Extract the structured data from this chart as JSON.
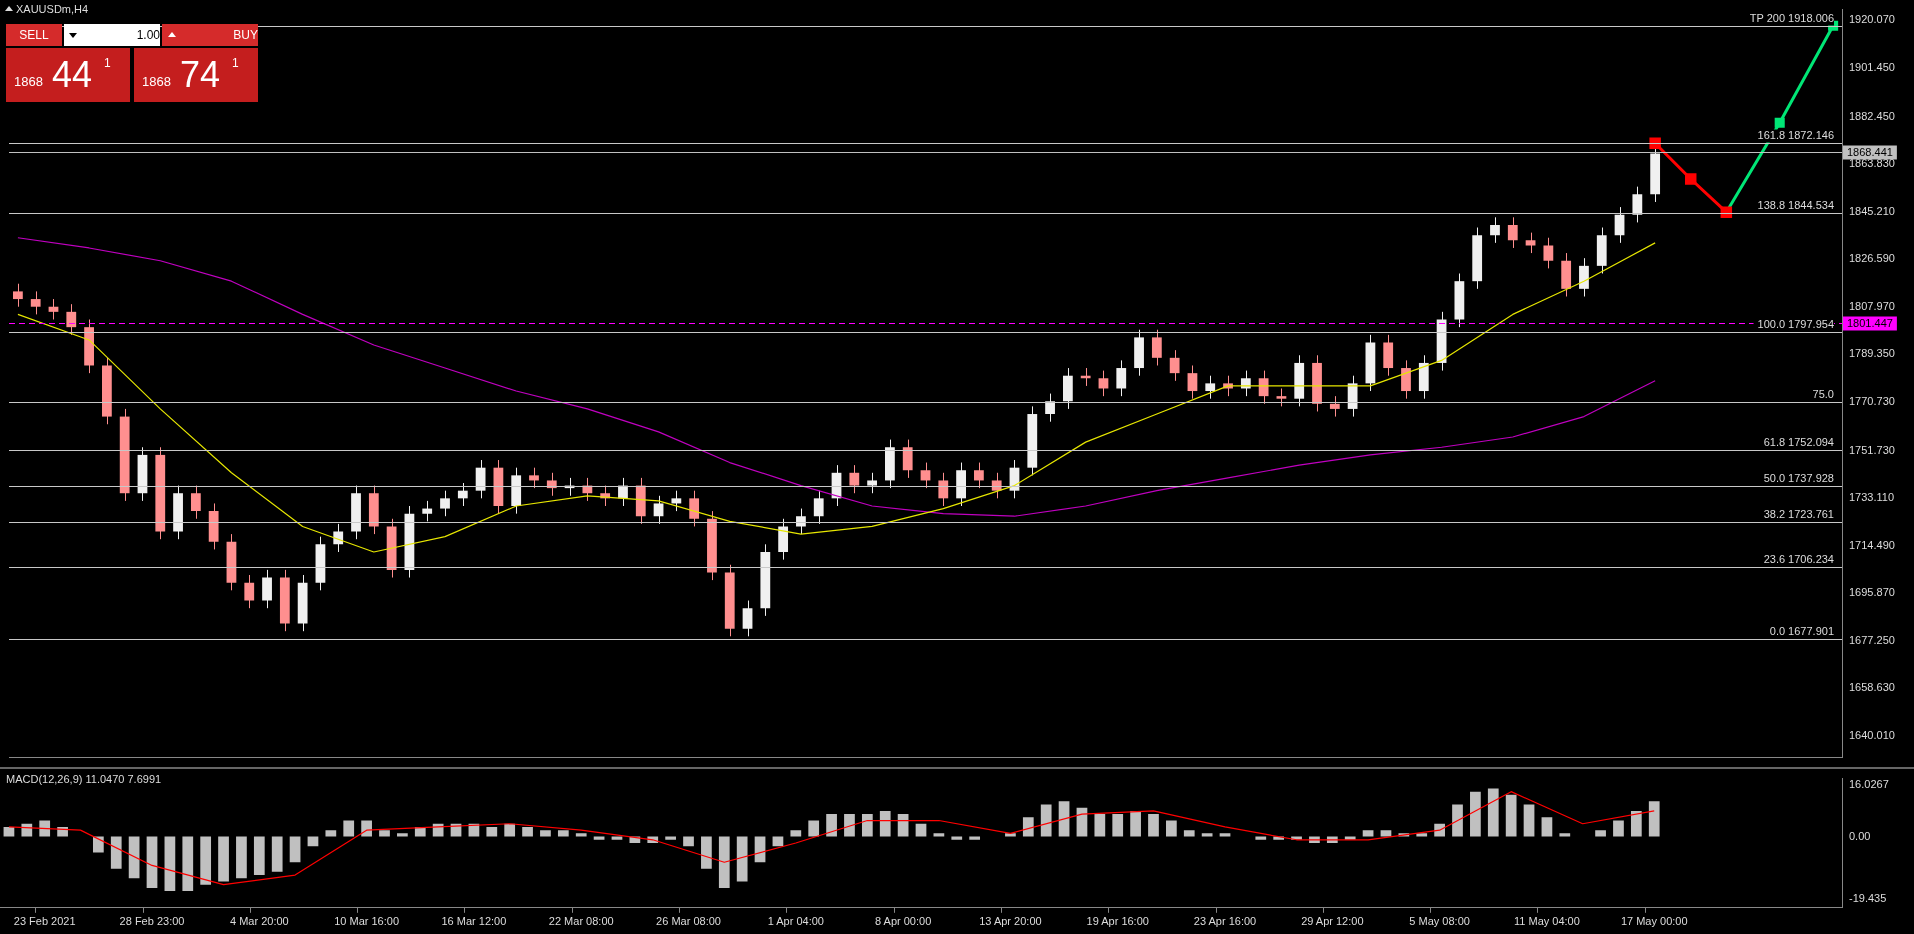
{
  "chart_data": [
    {
      "type": "candlestick",
      "title": "XAUUSDm,H4",
      "tick_labels": "y",
      "grid": false,
      "legend": false,
      "colors": [
        "#ff8f8f",
        "#ff8f8f",
        "#ff8f8f",
        "#ff8f8f",
        "#ff8f8f",
        "#ff8f8f",
        "#ff8f8f",
        "#f0f0f0",
        "#ff8f8f",
        "#f0f0f0",
        "#ff8f8f",
        "#ff8f8f",
        "#ff8f8f",
        "#ff8f8f",
        "#f0f0f0",
        "#ff8f8f",
        "#f0f0f0",
        "#f0f0f0",
        "#f0f0f0",
        "#f0f0f0",
        "#ff8f8f",
        "#ff8f8f",
        "#f0f0f0",
        "#f0f0f0",
        "#f0f0f0",
        "#f0f0f0",
        "#f0f0f0",
        "#ff8f8f",
        "#f0f0f0",
        "#ff8f8f",
        "#ff8f8f",
        "#f0f0f0",
        "#ff8f8f",
        "#ff8f8f",
        "#f0f0f0",
        "#ff8f8f",
        "#f0f0f0",
        "#f0f0f0",
        "#ff8f8f",
        "#ff8f8f",
        "#ff8f8f",
        "#f0f0f0",
        "#f0f0f0",
        "#f0f0f0",
        "#f0f0f0",
        "#f0f0f0",
        "#f0f0f0",
        "#ff8f8f",
        "#f0f0f0",
        "#f0f0f0",
        "#ff8f8f",
        "#ff8f8f",
        "#ff8f8f",
        "#f0f0f0",
        "#ff8f8f",
        "#ff8f8f",
        "#f0f0f0",
        "#f0f0f0",
        "#f0f0f0",
        "#f0f0f0",
        "#ff8f8f",
        "#ff8f8f",
        "#f0f0f0",
        "#f0f0f0",
        "#ff8f8f",
        "#ff8f8f",
        "#ff8f8f",
        "#f0f0f0",
        "#ff8f8f",
        "#f0f0f0",
        "#ff8f8f",
        "#ff8f8f",
        "#f0f0f0",
        "#ff8f8f",
        "#ff8f8f",
        "#f0f0f0",
        "#f0f0f0",
        "#ff8f8f",
        "#ff8f8f",
        "#f0f0f0",
        "#f0f0f0",
        "#f0f0f0",
        "#f0f0f0",
        "#f0f0f0",
        "#ff8f8f",
        "#ff8f8f",
        "#ff8f8f",
        "#ff8f8f",
        "#f0f0f0",
        "#f0f0f0",
        "#f0f0f0",
        "#f0f0f0",
        "#f0f0f0",
        null,
        null,
        null,
        null,
        null,
        null,
        null,
        null,
        null,
        null
      ],
      "categories": [
        null,
        null,
        null,
        null,
        null,
        null,
        null,
        null,
        null,
        null,
        null,
        null,
        null,
        null,
        null,
        null,
        null,
        null,
        null,
        null,
        null,
        null,
        null,
        null,
        null,
        null,
        null,
        null,
        null,
        null,
        null,
        null,
        null,
        null,
        null,
        null,
        null,
        null,
        null,
        null,
        null,
        null,
        null,
        null,
        null,
        null,
        null,
        null,
        null,
        null,
        null,
        null,
        null,
        null,
        null,
        null,
        null,
        null,
        null,
        null,
        null,
        null,
        null,
        null,
        null,
        null,
        null,
        null,
        null,
        null,
        null,
        null,
        null,
        null,
        null,
        null,
        null,
        null,
        null,
        null,
        null,
        null,
        null,
        null,
        null,
        null,
        null,
        null,
        null,
        null,
        null,
        null,
        null,
        null,
        null,
        null,
        null,
        null,
        null,
        null,
        null,
        null,
        null
      ],
      "ohlc": [
        [
          1814,
          1817,
          1808,
          1811
        ],
        [
          1811,
          1814,
          1805,
          1808
        ],
        [
          1808,
          1811,
          1803,
          1806
        ],
        [
          1806,
          1809,
          1797,
          1800
        ],
        [
          1800,
          1803,
          1782,
          1785
        ],
        [
          1785,
          1788,
          1762,
          1765
        ],
        [
          1765,
          1768,
          1732,
          1735
        ],
        [
          1735,
          1753,
          1732,
          1750
        ],
        [
          1750,
          1753,
          1717,
          1720
        ],
        [
          1720,
          1738,
          1717,
          1735
        ],
        [
          1735,
          1738,
          1725,
          1728
        ],
        [
          1728,
          1731,
          1713,
          1716
        ],
        [
          1716,
          1719,
          1697,
          1700
        ],
        [
          1700,
          1703,
          1690,
          1693
        ],
        [
          1693,
          1705,
          1690,
          1702
        ],
        [
          1702,
          1705,
          1681,
          1684
        ],
        [
          1684,
          1703,
          1681,
          1700
        ],
        [
          1700,
          1718,
          1697,
          1715
        ],
        [
          1715,
          1723,
          1712,
          1720
        ],
        [
          1720,
          1738,
          1717,
          1735
        ],
        [
          1735,
          1738,
          1719,
          1722
        ],
        [
          1722,
          1725,
          1702,
          1705
        ],
        [
          1705,
          1730,
          1702,
          1727
        ],
        [
          1727,
          1732,
          1724,
          1729
        ],
        [
          1729,
          1736,
          1726,
          1733
        ],
        [
          1733,
          1739,
          1730,
          1736
        ],
        [
          1736,
          1748,
          1733,
          1745
        ],
        [
          1745,
          1748,
          1727,
          1730
        ],
        [
          1730,
          1745,
          1727,
          1742
        ],
        [
          1742,
          1745,
          1737,
          1740
        ],
        [
          1740,
          1743,
          1734,
          1737
        ],
        [
          1737,
          1741,
          1734,
          1738
        ],
        [
          1738,
          1741,
          1732,
          1735
        ],
        [
          1735,
          1738,
          1730,
          1733
        ],
        [
          1733,
          1741,
          1730,
          1738
        ],
        [
          1738,
          1741,
          1723,
          1726
        ],
        [
          1726,
          1734,
          1723,
          1731
        ],
        [
          1731,
          1736,
          1728,
          1733
        ],
        [
          1733,
          1736,
          1722,
          1725
        ],
        [
          1725,
          1728,
          1701,
          1704
        ],
        [
          1704,
          1707,
          1679,
          1682
        ],
        [
          1682,
          1693,
          1679,
          1690
        ],
        [
          1690,
          1715,
          1687,
          1712
        ],
        [
          1712,
          1725,
          1709,
          1722
        ],
        [
          1722,
          1729,
          1719,
          1726
        ],
        [
          1726,
          1736,
          1723,
          1733
        ],
        [
          1733,
          1746,
          1730,
          1743
        ],
        [
          1743,
          1746,
          1735,
          1738
        ],
        [
          1738,
          1743,
          1735,
          1740
        ],
        [
          1740,
          1756,
          1737,
          1753
        ],
        [
          1753,
          1756,
          1741,
          1744
        ],
        [
          1744,
          1747,
          1737,
          1740
        ],
        [
          1740,
          1743,
          1730,
          1733
        ],
        [
          1733,
          1747,
          1730,
          1744
        ],
        [
          1744,
          1747,
          1737,
          1740
        ],
        [
          1740,
          1743,
          1733,
          1736
        ],
        [
          1736,
          1748,
          1733,
          1745
        ],
        [
          1745,
          1769,
          1742,
          1766
        ],
        [
          1766,
          1774,
          1763,
          1771
        ],
        [
          1771,
          1784,
          1768,
          1781
        ],
        [
          1781,
          1784,
          1777,
          1780
        ],
        [
          1780,
          1783,
          1773,
          1776
        ],
        [
          1776,
          1787,
          1773,
          1784
        ],
        [
          1784,
          1799,
          1781,
          1796
        ],
        [
          1796,
          1799,
          1785,
          1788
        ],
        [
          1788,
          1791,
          1779,
          1782
        ],
        [
          1782,
          1785,
          1772,
          1775
        ],
        [
          1775,
          1781,
          1772,
          1778
        ],
        [
          1778,
          1781,
          1773,
          1776
        ],
        [
          1776,
          1783,
          1773,
          1780
        ],
        [
          1780,
          1783,
          1770,
          1773
        ],
        [
          1773,
          1776,
          1769,
          1772
        ],
        [
          1772,
          1789,
          1769,
          1786
        ],
        [
          1786,
          1789,
          1767,
          1770
        ],
        [
          1770,
          1773,
          1765,
          1768
        ],
        [
          1768,
          1781,
          1765,
          1778
        ],
        [
          1778,
          1797,
          1775,
          1794
        ],
        [
          1794,
          1797,
          1781,
          1784
        ],
        [
          1784,
          1787,
          1772,
          1775
        ],
        [
          1775,
          1789,
          1772,
          1786
        ],
        [
          1786,
          1806,
          1783,
          1803
        ],
        [
          1803,
          1821,
          1800,
          1818
        ],
        [
          1818,
          1839,
          1815,
          1836
        ],
        [
          1836,
          1843,
          1833,
          1840
        ],
        [
          1840,
          1843,
          1831,
          1834
        ],
        [
          1834,
          1837,
          1829,
          1832
        ],
        [
          1832,
          1835,
          1823,
          1826
        ],
        [
          1826,
          1829,
          1812,
          1815
        ],
        [
          1815,
          1827,
          1812,
          1824
        ],
        [
          1824,
          1839,
          1821,
          1836
        ],
        [
          1836,
          1847,
          1833,
          1844
        ],
        [
          1844,
          1855,
          1841,
          1852
        ],
        [
          1852,
          1873,
          1849,
          1868
        ],
        null,
        null,
        null,
        null,
        null,
        null,
        null,
        null,
        null,
        null
      ],
      "series": [
        {
          "type": "line",
          "color": "#e6e600",
          "values": [
            1805,
            null,
            null,
            null,
            1795,
            null,
            null,
            null,
            1768,
            null,
            null,
            null,
            1743,
            null,
            null,
            null,
            1722,
            null,
            null,
            null,
            1712,
            null,
            null,
            null,
            1718,
            null,
            null,
            null,
            1730,
            null,
            null,
            null,
            1734,
            null,
            null,
            null,
            1732,
            null,
            null,
            null,
            1724,
            null,
            null,
            null,
            1719,
            null,
            null,
            null,
            1722,
            null,
            null,
            null,
            1729,
            null,
            null,
            null,
            1738,
            null,
            null,
            null,
            1755,
            null,
            null,
            null,
            1766,
            null,
            null,
            null,
            1777,
            null,
            null,
            null,
            1777,
            null,
            null,
            null,
            1777,
            null,
            null,
            null,
            1787,
            null,
            null,
            null,
            1805,
            null,
            null,
            null,
            1818,
            null,
            null,
            null,
            1833,
            null,
            null,
            null,
            null,
            null,
            null,
            null,
            null,
            null,
            null
          ]
        },
        {
          "type": "line",
          "color": "#c000c0",
          "values": [
            1835,
            null,
            null,
            null,
            1831,
            null,
            null,
            null,
            1826,
            null,
            null,
            null,
            1818,
            null,
            null,
            null,
            1805,
            null,
            null,
            null,
            1793,
            null,
            null,
            null,
            1784,
            null,
            null,
            null,
            1775,
            null,
            null,
            null,
            1768,
            null,
            null,
            null,
            1759,
            null,
            null,
            null,
            1747,
            null,
            null,
            null,
            1738,
            null,
            null,
            null,
            1730,
            null,
            null,
            null,
            1727,
            null,
            null,
            null,
            1726,
            null,
            null,
            null,
            1730,
            null,
            null,
            null,
            1736,
            null,
            null,
            null,
            1741,
            null,
            null,
            null,
            1746,
            null,
            null,
            null,
            1750,
            null,
            null,
            null,
            1753,
            null,
            null,
            null,
            1757,
            null,
            null,
            null,
            1765,
            null,
            null,
            null,
            1779,
            null,
            null,
            null,
            null,
            null,
            null,
            null,
            null,
            null,
            null
          ]
        },
        {
          "type": "line",
          "color": "#ff0000",
          "marker": "square",
          "values": [
            null,
            null,
            null,
            null,
            null,
            null,
            null,
            null,
            null,
            null,
            null,
            null,
            null,
            null,
            null,
            null,
            null,
            null,
            null,
            null,
            null,
            null,
            null,
            null,
            null,
            null,
            null,
            null,
            null,
            null,
            null,
            null,
            null,
            null,
            null,
            null,
            null,
            null,
            null,
            null,
            null,
            null,
            null,
            null,
            null,
            null,
            null,
            null,
            null,
            null,
            null,
            null,
            null,
            null,
            null,
            null,
            null,
            null,
            null,
            null,
            null,
            null,
            null,
            null,
            null,
            null,
            null,
            null,
            null,
            null,
            null,
            null,
            null,
            null,
            null,
            null,
            null,
            null,
            null,
            null,
            null,
            null,
            null,
            null,
            null,
            null,
            null,
            null,
            null,
            null,
            null,
            null,
            1872,
            null,
            1858,
            null,
            1845,
            null,
            null,
            null,
            null,
            null,
            null
          ]
        },
        {
          "type": "line",
          "color": "#00e676",
          "marker": "square",
          "values": [
            null,
            null,
            null,
            null,
            null,
            null,
            null,
            null,
            null,
            null,
            null,
            null,
            null,
            null,
            null,
            null,
            null,
            null,
            null,
            null,
            null,
            null,
            null,
            null,
            null,
            null,
            null,
            null,
            null,
            null,
            null,
            null,
            null,
            null,
            null,
            null,
            null,
            null,
            null,
            null,
            null,
            null,
            null,
            null,
            null,
            null,
            null,
            null,
            null,
            null,
            null,
            null,
            null,
            null,
            null,
            null,
            null,
            null,
            null,
            null,
            null,
            null,
            null,
            null,
            null,
            null,
            null,
            null,
            null,
            null,
            null,
            null,
            null,
            null,
            null,
            null,
            null,
            null,
            null,
            null,
            null,
            null,
            null,
            null,
            null,
            null,
            null,
            null,
            null,
            null,
            null,
            null,
            null,
            null,
            null,
            null,
            1845,
            null,
            null,
            1880,
            null,
            null,
            1918
          ]
        }
      ],
      "ylim": [
        1631.6,
        1924.3
      ],
      "yticks": [
        {
          "value": 1920.07,
          "label": "1920.070"
        },
        {
          "value": 1901.45,
          "label": "1901.450"
        },
        {
          "value": 1882.45,
          "label": "1882.450"
        },
        {
          "value": 1863.83,
          "label": "1863.830"
        },
        {
          "value": 1845.21,
          "label": "1845.210"
        },
        {
          "value": 1826.59,
          "label": "1826.590"
        },
        {
          "value": 1807.97,
          "label": "1807.970"
        },
        {
          "value": 1789.35,
          "label": "1789.350"
        },
        {
          "value": 1770.73,
          "label": "1770.730"
        },
        {
          "value": 1751.73,
          "label": "1751.730"
        },
        {
          "value": 1733.11,
          "label": "1733.110"
        },
        {
          "value": 1714.49,
          "label": "1714.490"
        },
        {
          "value": 1695.87,
          "label": "1695.870"
        },
        {
          "value": 1677.25,
          "label": "1677.250"
        },
        {
          "value": 1658.63,
          "label": "1658.630"
        },
        {
          "value": 1640.01,
          "label": "1640.010"
        }
      ],
      "ref_lines": [
        {
          "axis": "y",
          "value": 1918.006,
          "label": "TP 200 1918.006"
        },
        {
          "axis": "y",
          "value": 1872.146,
          "label": "161.8 1872.146"
        },
        {
          "axis": "y",
          "value": 1844.534,
          "label": "138.8 1844.534"
        },
        {
          "axis": "y",
          "value": 1797.954,
          "label": "100.0 1797.954"
        },
        {
          "axis": "y",
          "value": 1770.73
        },
        {
          "axis": "y",
          "value": 1752.094,
          "label": "61.8 1752.094"
        },
        {
          "axis": "y",
          "value": 1737.928,
          "label": "50.0 1737.928"
        },
        {
          "axis": "y",
          "value": 1723.761,
          "label": "38.2 1723.761"
        },
        {
          "axis": "y",
          "value": 1706.234,
          "label": "23.6 1706.234"
        },
        {
          "axis": "y",
          "value": 1677.901,
          "label": "0.0 1677.901"
        },
        {
          "axis": "y",
          "value": 1868.441,
          "label": "1868.441",
          "color": "#c0c0c0"
        },
        {
          "axis": "y",
          "value": 1801.447,
          "label": "1801.447",
          "color": "#ff00ff",
          "line_style": "dashed"
        }
      ],
      "annotations": [
        "SELL",
        "1.00",
        "BUY",
        "1868",
        "44",
        "1",
        "1868",
        "74",
        "1",
        {
          "text": "75.0",
          "y": 1770.73
        }
      ]
    },
    {
      "type": "bar",
      "title": "MACD(12,26,9) 11.0470 7.6991",
      "grid": false,
      "legend": false,
      "categories": [
        null,
        null,
        "23 Feb 2021",
        null,
        null,
        null,
        null,
        null,
        "28 Feb 23:00",
        null,
        null,
        null,
        null,
        null,
        "4 Mar 20:00",
        null,
        null,
        null,
        null,
        null,
        "10 Mar 16:00",
        null,
        null,
        null,
        null,
        null,
        "16 Mar 12:00",
        null,
        null,
        null,
        null,
        null,
        "22 Mar 08:00",
        null,
        null,
        null,
        null,
        null,
        "26 Mar 08:00",
        null,
        null,
        null,
        null,
        null,
        "1 Apr 04:00",
        null,
        null,
        null,
        null,
        null,
        "8 Apr 00:00",
        null,
        null,
        null,
        null,
        null,
        "13 Apr 20:00",
        null,
        null,
        null,
        null,
        null,
        "19 Apr 16:00",
        null,
        null,
        null,
        null,
        null,
        "23 Apr 16:00",
        null,
        null,
        null,
        null,
        null,
        "29 Apr 12:00",
        null,
        null,
        null,
        null,
        null,
        "5 May 08:00",
        null,
        null,
        null,
        null,
        null,
        "11 May 04:00",
        null,
        null,
        null,
        null,
        null,
        "17 May 00:00",
        null,
        null,
        null,
        null,
        null,
        null,
        null,
        null,
        null,
        null
      ],
      "series": [
        {
          "type": "bar",
          "color": "#c0c0c0",
          "values": [
            3,
            4,
            5,
            3,
            0,
            -5,
            -10,
            -13,
            -16,
            -17,
            -17,
            -15,
            -14,
            -13,
            -12,
            -11,
            -8,
            -3,
            2,
            5,
            5,
            2,
            1,
            3,
            4,
            4,
            4,
            3,
            4,
            3,
            2,
            2,
            1,
            -1,
            -1,
            -2,
            -2,
            -1,
            -3,
            -10,
            -16,
            -14,
            -8,
            -3,
            2,
            5,
            7,
            7,
            7,
            8,
            7,
            4,
            1,
            -1,
            -1,
            0,
            1,
            6,
            10,
            11,
            9,
            7,
            7,
            8,
            7,
            5,
            2,
            1,
            1,
            0,
            -1,
            -1,
            -1,
            -2,
            -2,
            -1,
            2,
            2,
            1,
            1,
            4,
            10,
            14,
            15,
            13,
            10,
            6,
            1,
            0,
            2,
            5,
            8,
            11,
            null,
            null,
            null,
            null,
            null,
            null,
            null,
            null,
            null,
            null
          ]
        },
        {
          "type": "line",
          "color": "#ff0000",
          "values": [
            3,
            null,
            null,
            null,
            2,
            null,
            null,
            null,
            -9,
            null,
            null,
            null,
            -15,
            null,
            null,
            null,
            -12,
            null,
            null,
            null,
            2,
            null,
            null,
            null,
            3,
            null,
            null,
            null,
            4,
            null,
            null,
            null,
            2,
            null,
            null,
            null,
            -1,
            null,
            null,
            null,
            -8,
            null,
            null,
            null,
            -2,
            null,
            null,
            null,
            5,
            null,
            null,
            null,
            5,
            null,
            null,
            null,
            1,
            null,
            null,
            null,
            7,
            null,
            null,
            null,
            8,
            null,
            null,
            null,
            3,
            null,
            null,
            null,
            -1,
            null,
            null,
            null,
            -1,
            null,
            null,
            null,
            2,
            null,
            null,
            null,
            14,
            null,
            null,
            null,
            4,
            null,
            null,
            null,
            8,
            null,
            null,
            null,
            null,
            null,
            null,
            null,
            null,
            null,
            null
          ]
        }
      ],
      "ylim": [
        -22.2,
        18.07
      ],
      "yticks": [
        16.0267,
        {
          "value": 0,
          "label": "0.00"
        },
        -19.435
      ]
    }
  ]
}
